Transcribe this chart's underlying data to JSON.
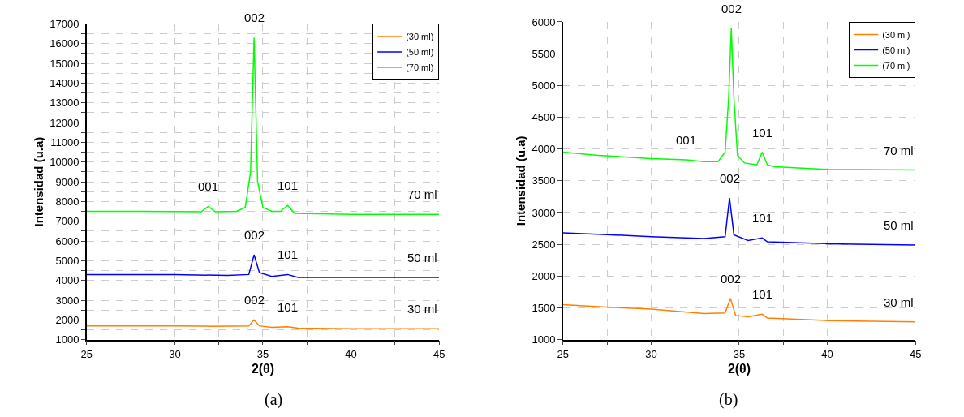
{
  "chart_data": [
    {
      "type": "line",
      "xlabel": "2(θ)",
      "ylabel": "Intensidad (u.a)",
      "xlim": [
        25,
        45
      ],
      "xticks": [
        25,
        {
          "value": 27.5,
          "label": null
        },
        30,
        {
          "value": 32.5,
          "label": null
        },
        35,
        {
          "value": 37.5,
          "label": null
        },
        40,
        {
          "value": 42.5,
          "label": null
        },
        45
      ],
      "ylim": [
        1000,
        17000
      ],
      "yticks": [
        1000,
        {
          "value": 1500,
          "label": null
        },
        2000,
        {
          "value": 2500,
          "label": null
        },
        3000,
        {
          "value": 3500,
          "label": null
        },
        4000,
        {
          "value": 4500,
          "label": null
        },
        5000,
        {
          "value": 5500,
          "label": null
        },
        6000,
        {
          "value": 6500,
          "label": null
        },
        7000,
        {
          "value": 7500,
          "label": null
        },
        8000,
        {
          "value": 8500,
          "label": null
        },
        9000,
        {
          "value": 9500,
          "label": null
        },
        10000,
        {
          "value": 10500,
          "label": null
        },
        11000,
        {
          "value": 11500,
          "label": null
        },
        12000,
        {
          "value": 12500,
          "label": null
        },
        13000,
        {
          "value": 13500,
          "label": null
        },
        14000,
        {
          "value": 14500,
          "label": null
        },
        15000,
        {
          "value": 15500,
          "label": null
        },
        16000,
        {
          "value": 16500,
          "label": null
        },
        17000
      ],
      "grid": true,
      "legend": "top right",
      "marker": "none",
      "line_style": "solid",
      "series": [
        {
          "name": "(30 ml)",
          "color": "#ff7f00",
          "x": [
            25,
            27,
            30,
            32,
            34.2,
            34.5,
            34.8,
            35.5,
            36.4,
            37,
            40,
            45
          ],
          "values": [
            1700,
            1700,
            1700,
            1680,
            1700,
            2000,
            1700,
            1620,
            1650,
            1580,
            1550,
            1550
          ]
        },
        {
          "name": "(50 ml)",
          "color": "#0000ff",
          "x": [
            25,
            27,
            30,
            33,
            34.2,
            34.5,
            34.8,
            35.5,
            36.4,
            37,
            40,
            45
          ],
          "values": [
            4300,
            4300,
            4300,
            4250,
            4300,
            5300,
            4400,
            4200,
            4300,
            4150,
            4150,
            4150
          ]
        },
        {
          "name": "(70 ml)",
          "color": "#00ff00",
          "x": [
            25,
            28,
            31.5,
            31.9,
            32.3,
            33.5,
            34.0,
            34.3,
            34.5,
            34.7,
            35.0,
            35.5,
            36.0,
            36.4,
            36.8,
            40,
            45
          ],
          "values": [
            7500,
            7500,
            7480,
            7750,
            7480,
            7500,
            7700,
            9500,
            16300,
            9000,
            7700,
            7500,
            7500,
            7800,
            7400,
            7350,
            7350
          ]
        }
      ],
      "annotations": [
        {
          "text": "001",
          "x": 31.9,
          "y": 7750
        },
        {
          "text": "002",
          "x": 34.5,
          "y": 16300
        },
        {
          "text": "101",
          "x": 36.4,
          "y": 7800
        },
        {
          "text": "70 ml",
          "x": 45,
          "y": 7350
        },
        {
          "text": "002",
          "x": 34.5,
          "y": 5300
        },
        {
          "text": "101",
          "x": 36.4,
          "y": 4300
        },
        {
          "text": "50 ml",
          "x": 45,
          "y": 4150
        },
        {
          "text": "002",
          "x": 34.5,
          "y": 2000
        },
        {
          "text": "101",
          "x": 36.4,
          "y": 1650
        },
        {
          "text": "30 ml",
          "x": 45,
          "y": 1550
        },
        "(a)"
      ]
    },
    {
      "type": "line",
      "xlabel": "2(θ)",
      "ylabel": "Intensidad (u.a)",
      "xlim": [
        25,
        45
      ],
      "xticks": [
        25,
        {
          "value": 27.5,
          "label": null
        },
        30,
        {
          "value": 32.5,
          "label": null
        },
        35,
        {
          "value": 37.5,
          "label": null
        },
        40,
        {
          "value": 42.5,
          "label": null
        },
        45
      ],
      "ylim": [
        1000,
        6000
      ],
      "yticks": [
        1000,
        1500,
        2000,
        2500,
        3000,
        3500,
        4000,
        4500,
        5000,
        5500,
        6000
      ],
      "grid": true,
      "legend": "top right",
      "marker": "none",
      "line_style": "solid",
      "series": [
        {
          "name": "(30 ml)",
          "color": "#ff7f00",
          "x": [
            25,
            27,
            30,
            33,
            34.2,
            34.5,
            34.8,
            35.5,
            36.3,
            36.6,
            40,
            45
          ],
          "values": [
            1550,
            1520,
            1480,
            1410,
            1420,
            1650,
            1380,
            1360,
            1400,
            1340,
            1300,
            1280
          ]
        },
        {
          "name": "(50 ml)",
          "color": "#0000ff",
          "x": [
            25,
            27,
            30,
            33,
            34.2,
            34.45,
            34.7,
            35.5,
            36.3,
            36.6,
            40,
            45
          ],
          "values": [
            2680,
            2660,
            2620,
            2590,
            2620,
            3230,
            2650,
            2560,
            2600,
            2540,
            2510,
            2490
          ]
        },
        {
          "name": "(70 ml)",
          "color": "#00ff00",
          "x": [
            25,
            27,
            30,
            32,
            33,
            33.8,
            34.2,
            34.4,
            34.55,
            34.7,
            34.9,
            35.3,
            36,
            36.3,
            36.6,
            37,
            40,
            45
          ],
          "values": [
            3950,
            3900,
            3850,
            3830,
            3800,
            3800,
            3950,
            4800,
            5900,
            4800,
            3900,
            3780,
            3750,
            3950,
            3750,
            3720,
            3680,
            3670
          ]
        }
      ],
      "annotations": [
        {
          "text": "001",
          "x": 32,
          "y": 3830
        },
        {
          "text": "002",
          "x": 34.55,
          "y": 5900
        },
        {
          "text": "101",
          "x": 36.3,
          "y": 3950
        },
        {
          "text": "70 ml",
          "x": 45,
          "y": 3670
        },
        {
          "text": "002",
          "x": 34.45,
          "y": 3230
        },
        {
          "text": "101",
          "x": 36.3,
          "y": 2600
        },
        {
          "text": "50 ml",
          "x": 45,
          "y": 2490
        },
        {
          "text": "002",
          "x": 34.5,
          "y": 1650
        },
        {
          "text": "101",
          "x": 36.3,
          "y": 1400
        },
        {
          "text": "30 ml",
          "x": 45,
          "y": 1280
        },
        "(b)"
      ]
    }
  ]
}
